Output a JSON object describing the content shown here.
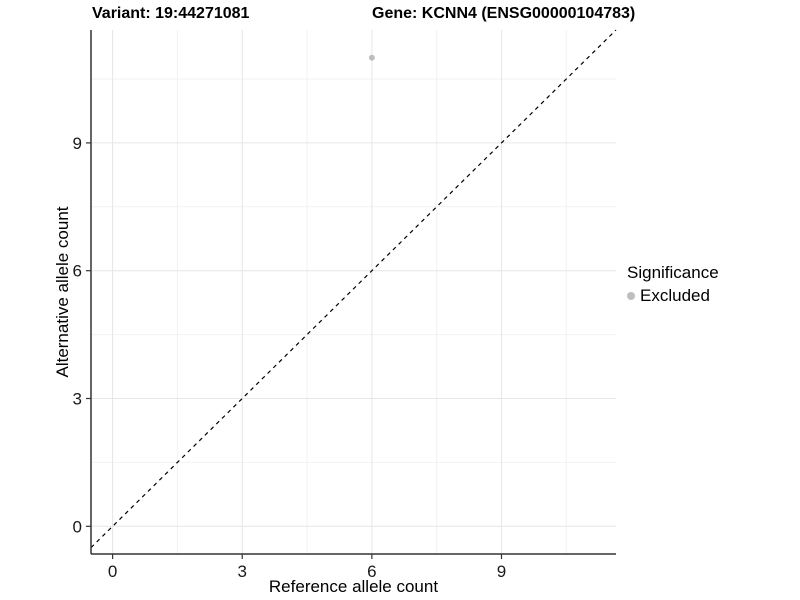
{
  "titles": {
    "variant": "Variant: 19:44271081",
    "gene": "Gene: KCNN4 (ENSG00000104783)"
  },
  "legend": {
    "title": "Significance",
    "items": [
      {
        "label": "Excluded",
        "color": "#bebebe"
      }
    ]
  },
  "colors": {
    "background": "#ffffff",
    "major_grid": "#e6e6e6",
    "minor_grid": "#f2f2f2",
    "axis_line": "#333333",
    "tick_mark": "#333333",
    "tick_label": "#1a1a1a",
    "point": "#bebebe",
    "identity_line": "#000000"
  },
  "chart_data": {
    "type": "scatter",
    "title": "Variant: 19:44271081   Gene: KCNN4 (ENSG00000104783)",
    "xlabel": "Reference allele count",
    "ylabel": "Alternative allele count",
    "xlim": [
      -0.5,
      11.65
    ],
    "ylim": [
      -0.65,
      11.65
    ],
    "x_ticks": [
      0,
      3,
      6,
      9
    ],
    "y_ticks": [
      0,
      3,
      6,
      9
    ],
    "x_minor_ticks": [
      1.5,
      4.5,
      7.5,
      10.5
    ],
    "y_minor_ticks": [
      1.5,
      4.5,
      7.5,
      10.5
    ],
    "grid": true,
    "legend_position": "right",
    "series": [
      {
        "name": "Excluded",
        "color": "#bebebe",
        "points": [
          {
            "x": 6,
            "y": 11
          }
        ]
      }
    ],
    "reference_line": {
      "type": "identity",
      "equation": "y = x",
      "style": "dashed",
      "color": "#000000"
    }
  }
}
